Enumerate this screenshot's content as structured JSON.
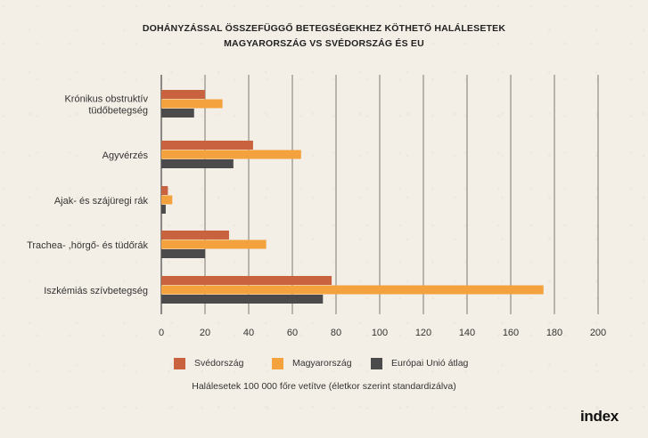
{
  "chart_data": {
    "type": "bar",
    "orientation": "horizontal",
    "title": "DOHÁNYZÁSSAL ÖSSZEFÜGGŐ BETEGSÉGEKHEZ KÖTHETŐ HALÁLESETEK",
    "subtitle": "MAGYARORSZÁG VS SVÉDORSZÁG ÉS EU",
    "categories": [
      [
        "Krónikus obstruktív",
        "tüdőbetegség"
      ],
      [
        "Agyvérzés"
      ],
      [
        "Ajak- és szájüregi rák"
      ],
      [
        "Trachea- ,hörgő- és tüdőrák"
      ],
      [
        "Iszkémiás szívbetegség"
      ]
    ],
    "series": [
      {
        "name": "Svédország",
        "color": "#c9623f",
        "values": [
          20,
          42,
          3,
          31,
          78
        ]
      },
      {
        "name": "Magyarország",
        "color": "#f4a23e",
        "values": [
          28,
          64,
          5,
          48,
          175
        ]
      },
      {
        "name": "Európai Unió átlag",
        "color": "#4b4b4b",
        "values": [
          15,
          33,
          2,
          20,
          74
        ]
      }
    ],
    "xlim": [
      0,
      200
    ],
    "xticks": [
      "0",
      "20",
      "40",
      "60",
      "80",
      "100",
      "120",
      "140",
      "160",
      "180",
      "200"
    ],
    "grid": true,
    "legend_position": "bottom",
    "caption": "Halálesetek 100 000 főre vetítve (életkor szerint standardizálva)"
  },
  "branding": {
    "logo": "index"
  }
}
